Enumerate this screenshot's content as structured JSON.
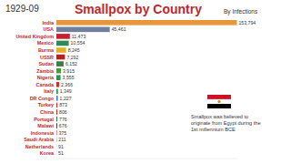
{
  "chart_data": {
    "type": "bar",
    "orientation": "horizontal",
    "title": "Smallpox by Country",
    "subtitle": "By Infections",
    "annotations": [
      "1929-09",
      "Smallpox was believed to originate from Egypt during the 1st millennium BCE"
    ],
    "categories": [
      "India",
      "USA",
      "United Kingdom",
      "Mexico",
      "Burma",
      "USSR",
      "Sudan",
      "Zambia",
      "Nigeria",
      "Canada",
      "Italy",
      "DR Congo",
      "Turkey",
      "China",
      "Portugal",
      "Malawi",
      "Indonesia",
      "Saudi Arabia",
      "Netherlands",
      "Korea"
    ],
    "values": [
      153794,
      45461,
      11473,
      10554,
      8245,
      7292,
      6152,
      3915,
      3555,
      2366,
      1349,
      1227,
      873,
      806,
      776,
      676,
      375,
      211,
      91,
      51
    ],
    "value_labels": [
      "153,794",
      "45,461",
      "11,473",
      "10,554",
      "8,245",
      "7,292",
      "6,152",
      "3,915",
      "3,555",
      "2,366",
      "1,349",
      "1,227",
      "873",
      "806",
      "776",
      "676",
      "375",
      "211",
      "91",
      "51"
    ],
    "colors": [
      "#e8963a",
      "#6f7f9c",
      "#c8202f",
      "#2e8b57",
      "#e0b02a",
      "#b22222",
      "#3a7d44",
      "#4a9a3a",
      "#2f8f4f",
      "#d62b2b",
      "#2a9d4a",
      "#3b7bd0",
      "#d9342b",
      "#de2910",
      "#2a7a3a",
      "#222222",
      "#c62828",
      "#1f6f3f",
      "#3a5fa8",
      "#3050a0"
    ],
    "xlim": [
      0,
      155000
    ],
    "data_labels": true,
    "tick_labels": false,
    "grid": false
  }
}
